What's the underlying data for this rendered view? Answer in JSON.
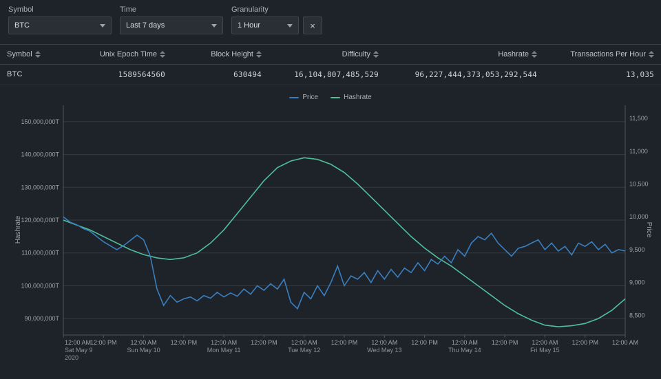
{
  "filters": {
    "symbol_label": "Symbol",
    "symbol_value": "BTC",
    "time_label": "Time",
    "time_value": "Last 7 days",
    "gran_label": "Granularity",
    "gran_value": "1 Hour",
    "clear_icon": "×"
  },
  "table": {
    "columns": [
      "Symbol",
      "Unix Epoch Time",
      "Block Height",
      "Difficulty",
      "Hashrate",
      "Transactions Per Hour"
    ],
    "rows": [
      [
        "BTC",
        "1589564560",
        "630494",
        "16,104,807,485,529",
        "96,227,444,373,053,292,544",
        "13,035"
      ]
    ]
  },
  "chart": {
    "legend": [
      {
        "label": "Price",
        "color": "#3a7fbf"
      },
      {
        "label": "Hashrate",
        "color": "#4fbf9a"
      }
    ],
    "y_left_label": "Hashrate",
    "y_right_label": "Price",
    "background": "#1e2329",
    "grid_color": "#353b43",
    "axis_color": "#4f565f",
    "y_left": {
      "min": 85000000,
      "max": 155000000,
      "ticks": [
        90000000,
        100000000,
        110000000,
        120000000,
        130000000,
        140000000,
        150000000
      ],
      "tick_labels": [
        "90,000,000T",
        "100,000,000T",
        "110,000,000T",
        "120,000,000T",
        "130,000,000T",
        "140,000,000T",
        "150,000,000T"
      ]
    },
    "y_right": {
      "min": 8200,
      "max": 11700,
      "ticks": [
        8500,
        9000,
        9500,
        10000,
        10500,
        11000,
        11500
      ],
      "tick_labels": [
        "8,500",
        "9,000",
        "9,500",
        "10,000",
        "10,500",
        "11,000",
        "11,500"
      ]
    },
    "x": {
      "min": 0,
      "max": 168,
      "ticks": [
        0,
        12,
        24,
        36,
        48,
        60,
        72,
        84,
        96,
        108,
        120,
        132,
        144,
        156,
        168
      ],
      "tick_labels_top": [
        "12:00 AM",
        "12:00 PM",
        "12:00 AM",
        "12:00 PM",
        "12:00 AM",
        "12:00 PM",
        "12:00 AM",
        "12:00 PM",
        "12:00 AM",
        "12:00 PM",
        "12:00 AM",
        "12:00 PM",
        "12:00 AM",
        "12:00 PM",
        "12:00 AM"
      ],
      "tick_labels_mid": [
        "Sat May 9",
        "",
        "Sun May 10",
        "",
        "Mon May 11",
        "",
        "Tue May 12",
        "",
        "Wed May 13",
        "",
        "Thu May 14",
        "",
        "Fri May 15",
        "",
        ""
      ],
      "tick_labels_bot": [
        "2020",
        "",
        "",
        "",
        "",
        "",
        "",
        "",
        "",
        "",
        "",
        "",
        "",
        "",
        ""
      ]
    },
    "series_price": {
      "color": "#3a7fbf",
      "points": [
        [
          0,
          10000
        ],
        [
          2,
          9920
        ],
        [
          4,
          9880
        ],
        [
          6,
          9820
        ],
        [
          8,
          9780
        ],
        [
          10,
          9700
        ],
        [
          12,
          9620
        ],
        [
          14,
          9560
        ],
        [
          16,
          9500
        ],
        [
          18,
          9560
        ],
        [
          20,
          9640
        ],
        [
          22,
          9720
        ],
        [
          24,
          9650
        ],
        [
          26,
          9400
        ],
        [
          28,
          8900
        ],
        [
          30,
          8650
        ],
        [
          32,
          8800
        ],
        [
          34,
          8700
        ],
        [
          36,
          8750
        ],
        [
          38,
          8780
        ],
        [
          40,
          8720
        ],
        [
          42,
          8800
        ],
        [
          44,
          8760
        ],
        [
          46,
          8850
        ],
        [
          48,
          8780
        ],
        [
          50,
          8840
        ],
        [
          52,
          8790
        ],
        [
          54,
          8900
        ],
        [
          56,
          8820
        ],
        [
          58,
          8950
        ],
        [
          60,
          8880
        ],
        [
          62,
          8980
        ],
        [
          64,
          8900
        ],
        [
          66,
          9050
        ],
        [
          68,
          8700
        ],
        [
          70,
          8600
        ],
        [
          72,
          8850
        ],
        [
          74,
          8750
        ],
        [
          76,
          8950
        ],
        [
          78,
          8800
        ],
        [
          80,
          9000
        ],
        [
          82,
          9250
        ],
        [
          84,
          8950
        ],
        [
          86,
          9100
        ],
        [
          88,
          9050
        ],
        [
          90,
          9150
        ],
        [
          92,
          9000
        ],
        [
          94,
          9180
        ],
        [
          96,
          9050
        ],
        [
          98,
          9200
        ],
        [
          100,
          9080
        ],
        [
          102,
          9220
        ],
        [
          104,
          9150
        ],
        [
          106,
          9300
        ],
        [
          108,
          9180
        ],
        [
          110,
          9350
        ],
        [
          112,
          9280
        ],
        [
          114,
          9400
        ],
        [
          116,
          9300
        ],
        [
          118,
          9500
        ],
        [
          120,
          9400
        ],
        [
          122,
          9600
        ],
        [
          124,
          9700
        ],
        [
          126,
          9650
        ],
        [
          128,
          9750
        ],
        [
          130,
          9600
        ],
        [
          132,
          9500
        ],
        [
          134,
          9400
        ],
        [
          136,
          9520
        ],
        [
          138,
          9550
        ],
        [
          140,
          9600
        ],
        [
          142,
          9650
        ],
        [
          144,
          9500
        ],
        [
          146,
          9600
        ],
        [
          148,
          9480
        ],
        [
          150,
          9550
        ],
        [
          152,
          9420
        ],
        [
          154,
          9600
        ],
        [
          156,
          9550
        ],
        [
          158,
          9620
        ],
        [
          160,
          9500
        ],
        [
          162,
          9580
        ],
        [
          164,
          9450
        ],
        [
          166,
          9500
        ],
        [
          168,
          9480
        ]
      ]
    },
    "series_hashrate": {
      "color": "#4fbf9a",
      "points": [
        [
          0,
          120000000
        ],
        [
          4,
          118500000
        ],
        [
          8,
          117000000
        ],
        [
          12,
          115000000
        ],
        [
          16,
          113000000
        ],
        [
          20,
          111000000
        ],
        [
          24,
          109500000
        ],
        [
          28,
          108500000
        ],
        [
          32,
          108000000
        ],
        [
          36,
          108500000
        ],
        [
          40,
          110000000
        ],
        [
          44,
          113000000
        ],
        [
          48,
          117000000
        ],
        [
          52,
          122000000
        ],
        [
          56,
          127000000
        ],
        [
          60,
          132000000
        ],
        [
          64,
          136000000
        ],
        [
          68,
          138000000
        ],
        [
          72,
          139000000
        ],
        [
          76,
          138500000
        ],
        [
          80,
          137000000
        ],
        [
          84,
          134500000
        ],
        [
          88,
          131000000
        ],
        [
          92,
          127000000
        ],
        [
          96,
          123000000
        ],
        [
          100,
          119000000
        ],
        [
          104,
          115000000
        ],
        [
          108,
          111500000
        ],
        [
          112,
          108500000
        ],
        [
          116,
          106000000
        ],
        [
          120,
          103000000
        ],
        [
          124,
          100000000
        ],
        [
          128,
          97000000
        ],
        [
          132,
          94000000
        ],
        [
          136,
          91500000
        ],
        [
          140,
          89500000
        ],
        [
          144,
          88000000
        ],
        [
          148,
          87500000
        ],
        [
          152,
          87800000
        ],
        [
          156,
          88500000
        ],
        [
          160,
          90000000
        ],
        [
          164,
          92500000
        ],
        [
          168,
          96000000
        ]
      ]
    }
  }
}
